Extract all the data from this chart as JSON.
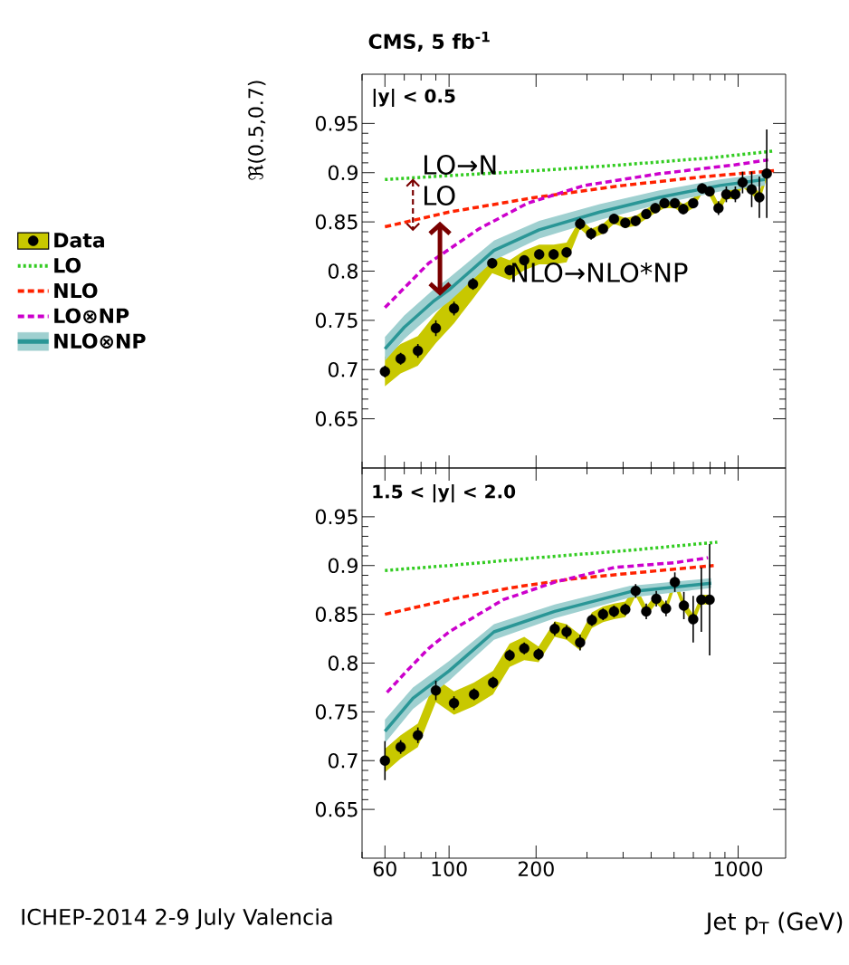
{
  "chart_data": [
    {
      "type": "line",
      "title": "CMS, 5 fb$^{-1}$",
      "ylabel": "ℜ(0.5,0.7)",
      "log": "x",
      "xlim": [
        50,
        1460
      ],
      "ylim": [
        0.6,
        1.0
      ],
      "xticks": [
        60,
        100,
        200,
        1000
      ],
      "yticks": [
        0.65,
        0.7,
        0.75,
        0.8,
        0.85,
        0.9,
        0.95
      ],
      "tick_labels": "y",
      "legend": "left",
      "annotations": [
        "|y| < 0.5",
        "LO→N",
        {
          "text": "LO",
          "x": 75,
          "y": 0.894
        },
        {
          "text": "NLO→NLO*NP",
          "x": 93,
          "y": 0.775
        }
      ],
      "series": [
        {
          "name": "Data",
          "type": "scatter",
          "marker": "circle",
          "color": "#000000",
          "x": [
            60,
            68,
            78,
            90,
            104,
            121,
            141,
            162,
            182,
            205,
            230,
            255,
            284,
            310,
            341,
            372,
            407,
            442,
            481,
            517,
            556,
            604,
            646,
            699,
            751,
            797,
            855,
            910,
            978,
            1036,
            1114,
            1184,
            1256
          ],
          "values": [
            0.698,
            0.711,
            0.719,
            0.742,
            0.762,
            0.787,
            0.808,
            0.801,
            0.811,
            0.817,
            0.817,
            0.819,
            0.848,
            0.838,
            0.843,
            0.853,
            0.849,
            0.851,
            0.858,
            0.864,
            0.869,
            0.869,
            0.863,
            0.869,
            0.884,
            0.881,
            0.864,
            0.878,
            0.878,
            0.89,
            0.883,
            0.875,
            0.899
          ],
          "errors": [
            0.006,
            0.006,
            0.007,
            0.008,
            0.007,
            0.006,
            0.005,
            0.005,
            0.005,
            0.005,
            0.005,
            0.005,
            0.006,
            0.006,
            0.005,
            0.005,
            0.005,
            0.005,
            0.005,
            0.005,
            0.005,
            0.005,
            0.005,
            0.005,
            0.005,
            0.005,
            0.007,
            0.008,
            0.008,
            0.011,
            0.018,
            0.021,
            0.045
          ],
          "lower": [
            0.683,
            0.696,
            0.704,
            0.727,
            0.747,
            0.772,
            0.798,
            0.791,
            0.801,
            0.807,
            0.807,
            0.809,
            0.843,
            0.833,
            0.838,
            0.848,
            0.844,
            0.846,
            0.853,
            0.859,
            0.864,
            0.864,
            0.858,
            0.864,
            0.879,
            0.876,
            0.859,
            0.873,
            0.873,
            0.885,
            0.878,
            0.87,
            0.894
          ],
          "upper": [
            0.713,
            0.726,
            0.734,
            0.757,
            0.777,
            0.802,
            0.818,
            0.811,
            0.821,
            0.827,
            0.827,
            0.829,
            0.853,
            0.843,
            0.848,
            0.858,
            0.854,
            0.856,
            0.863,
            0.869,
            0.874,
            0.874,
            0.868,
            0.874,
            0.889,
            0.886,
            0.869,
            0.883,
            0.883,
            0.895,
            0.888,
            0.88,
            0.904
          ]
        },
        {
          "name": "LO",
          "type": "line",
          "line_style": "dotted",
          "color": "#33cc22",
          "x": [
            60,
            100,
            200,
            400,
            800,
            1330
          ],
          "values": [
            0.893,
            0.897,
            0.902,
            0.908,
            0.915,
            0.922
          ]
        },
        {
          "name": "NLO",
          "type": "line",
          "line_style": "dashed",
          "color": "#ff2200",
          "x": [
            60,
            100,
            200,
            400,
            765,
            1330
          ],
          "values": [
            0.845,
            0.86,
            0.875,
            0.887,
            0.896,
            0.902
          ]
        },
        {
          "name": "LO⊗NP",
          "type": "line",
          "line_style": "dashed",
          "color": "#cc00cc",
          "x": [
            60,
            85,
            127,
            187,
            294,
            535,
            979,
            1270
          ],
          "values": [
            0.763,
            0.808,
            0.843,
            0.869,
            0.887,
            0.899,
            0.908,
            0.913
          ]
        },
        {
          "name": "NLO⊗NP",
          "type": "line",
          "line_style": "solid",
          "color": "#2a9696",
          "x": [
            60,
            70,
            88,
            100,
            143,
            205,
            332,
            535,
            866,
            1238
          ],
          "values": [
            0.721,
            0.743,
            0.769,
            0.781,
            0.821,
            0.842,
            0.86,
            0.875,
            0.887,
            0.893
          ],
          "lower": [
            0.709,
            0.731,
            0.757,
            0.769,
            0.811,
            0.833,
            0.852,
            0.868,
            0.881,
            0.887
          ],
          "upper": [
            0.733,
            0.755,
            0.781,
            0.793,
            0.831,
            0.851,
            0.868,
            0.882,
            0.893,
            0.899
          ]
        }
      ]
    },
    {
      "type": "line",
      "xlabel": "Jet p$_{T}$ (GeV)",
      "log": "x",
      "xlim": [
        50,
        1460
      ],
      "ylim": [
        0.6,
        1.0
      ],
      "xticks": [
        60,
        100,
        200,
        1000
      ],
      "yticks": [
        0.65,
        0.7,
        0.75,
        0.8,
        0.85,
        0.9,
        0.95
      ],
      "annotations": [
        "1.5 < |y| < 2.0",
        "ICHEP-2014 2-9 July Valencia"
      ],
      "series": [
        {
          "type": "scatter",
          "marker": "circle",
          "color": "#000000",
          "x": [
            60,
            68,
            78,
            90,
            104,
            122,
            142,
            162,
            182,
            204,
            232,
            255,
            284,
            312,
            341,
            372,
            407,
            442,
            481,
            521,
            563,
            604,
            649,
            699,
            746,
            797
          ],
          "values": [
            0.7,
            0.714,
            0.726,
            0.772,
            0.759,
            0.768,
            0.78,
            0.808,
            0.815,
            0.809,
            0.835,
            0.832,
            0.821,
            0.844,
            0.85,
            0.853,
            0.855,
            0.874,
            0.853,
            0.866,
            0.856,
            0.883,
            0.859,
            0.845,
            0.865,
            0.865
          ],
          "errors": [
            0.02,
            0.007,
            0.008,
            0.01,
            0.007,
            0.006,
            0.006,
            0.006,
            0.006,
            0.006,
            0.007,
            0.007,
            0.008,
            0.006,
            0.006,
            0.006,
            0.006,
            0.007,
            0.008,
            0.008,
            0.008,
            0.01,
            0.014,
            0.024,
            0.033,
            0.057
          ],
          "lower": [
            0.688,
            0.702,
            0.714,
            0.76,
            0.747,
            0.756,
            0.768,
            0.796,
            0.803,
            0.801,
            0.827,
            0.824,
            0.813,
            0.836,
            0.842,
            0.845,
            0.847,
            0.869,
            0.848,
            0.861,
            0.851,
            0.878,
            0.854,
            0.84,
            0.86,
            0.86
          ],
          "upper": [
            0.712,
            0.726,
            0.738,
            0.784,
            0.771,
            0.78,
            0.792,
            0.82,
            0.827,
            0.817,
            0.843,
            0.84,
            0.829,
            0.852,
            0.858,
            0.861,
            0.863,
            0.879,
            0.858,
            0.871,
            0.861,
            0.888,
            0.864,
            0.85,
            0.87,
            0.87
          ]
        },
        {
          "type": "line",
          "line_style": "dotted",
          "color": "#33cc22",
          "x": [
            60,
            100,
            200,
            400,
            847
          ],
          "values": [
            0.895,
            0.9,
            0.908,
            0.915,
            0.924
          ]
        },
        {
          "type": "line",
          "line_style": "dashed",
          "color": "#ff2200",
          "x": [
            60,
            100,
            162,
            260,
            421,
            823
          ],
          "values": [
            0.85,
            0.865,
            0.877,
            0.886,
            0.892,
            0.9
          ]
        },
        {
          "type": "line",
          "line_style": "dashed",
          "color": "#cc00cc",
          "x": [
            61,
            72,
            85,
            100,
            154,
            232,
            373,
            604,
            787
          ],
          "values": [
            0.77,
            0.793,
            0.815,
            0.832,
            0.865,
            0.883,
            0.898,
            0.903,
            0.908
          ]
        },
        {
          "type": "line",
          "line_style": "solid",
          "color": "#2a9696",
          "x": [
            60,
            75,
            100,
            143,
            232,
            421,
            807
          ],
          "values": [
            0.73,
            0.764,
            0.792,
            0.832,
            0.853,
            0.873,
            0.882
          ],
          "lower": [
            0.718,
            0.753,
            0.782,
            0.824,
            0.846,
            0.867,
            0.877
          ],
          "upper": [
            0.742,
            0.775,
            0.802,
            0.84,
            0.86,
            0.879,
            0.887
          ]
        }
      ]
    }
  ]
}
